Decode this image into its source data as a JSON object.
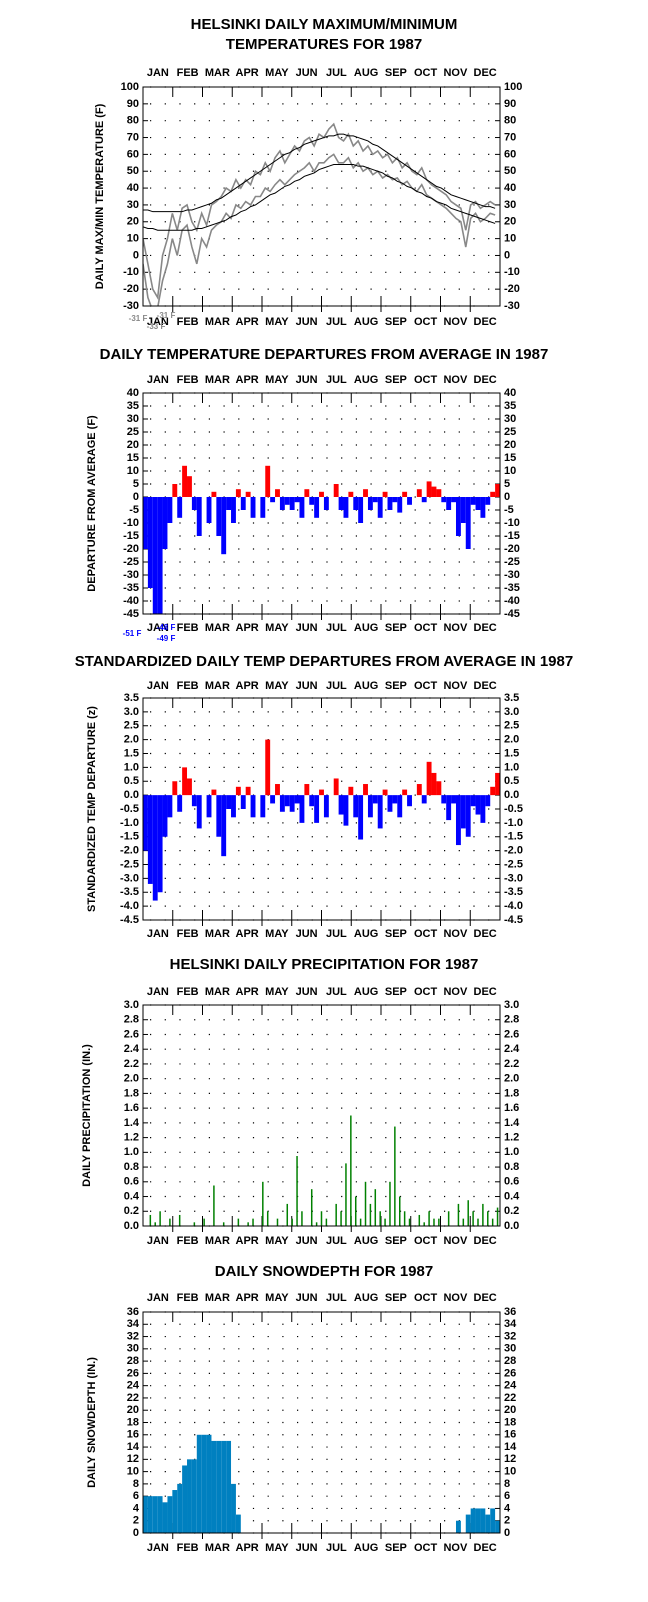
{
  "chart_data": [
    {
      "type": "line",
      "title": [
        "HELSINKI DAILY MAXIMUM/MINIMUM",
        "TEMPERATURES FOR 1987"
      ],
      "ylabel": "DAILY MAX/MIN TEMPERATURE (F)",
      "categories": [
        "JAN",
        "FEB",
        "MAR",
        "APR",
        "MAY",
        "JUN",
        "JUL",
        "AUG",
        "SEP",
        "OCT",
        "NOV",
        "DEC"
      ],
      "xlim": [
        1,
        366
      ],
      "x": [
        1,
        6,
        11,
        16,
        21,
        26,
        31,
        36,
        41,
        46,
        51,
        56,
        61,
        66,
        71,
        76,
        81,
        86,
        91,
        96,
        101,
        106,
        111,
        116,
        121,
        126,
        131,
        136,
        141,
        146,
        151,
        156,
        161,
        166,
        171,
        176,
        181,
        186,
        191,
        196,
        201,
        206,
        211,
        216,
        221,
        226,
        231,
        236,
        241,
        246,
        251,
        256,
        261,
        266,
        271,
        276,
        281,
        286,
        291,
        296,
        301,
        306,
        311,
        316,
        321,
        326,
        331,
        336,
        341,
        346,
        351,
        356,
        361
      ],
      "series": [
        {
          "color": "#888888",
          "values": [
            10,
            -5,
            -20,
            -25,
            0,
            10,
            25,
            15,
            28,
            30,
            20,
            15,
            25,
            18,
            30,
            32,
            35,
            40,
            38,
            45,
            40,
            45,
            42,
            50,
            48,
            55,
            50,
            58,
            62,
            55,
            60,
            65,
            62,
            68,
            70,
            65,
            72,
            70,
            75,
            78,
            70,
            68,
            72,
            65,
            68,
            62,
            65,
            60,
            62,
            58,
            60,
            55,
            58,
            52,
            55,
            50,
            48,
            52,
            45,
            42,
            40,
            38,
            36,
            32,
            30,
            28,
            15,
            30,
            32,
            28,
            30,
            32,
            30
          ]
        },
        {
          "color": "#888888",
          "values": [
            -5,
            -25,
            -33,
            -31,
            -15,
            -5,
            10,
            0,
            15,
            18,
            5,
            -5,
            10,
            5,
            15,
            18,
            20,
            25,
            22,
            30,
            28,
            32,
            30,
            35,
            35,
            40,
            38,
            42,
            45,
            42,
            45,
            48,
            50,
            52,
            55,
            50,
            55,
            55,
            58,
            60,
            55,
            55,
            58,
            52,
            55,
            50,
            52,
            48,
            50,
            46,
            48,
            45,
            46,
            42,
            44,
            40,
            38,
            42,
            36,
            34,
            32,
            30,
            28,
            25,
            22,
            20,
            5,
            22,
            25,
            20,
            22,
            25,
            24
          ]
        },
        {
          "color": "#000000",
          "values": [
            27,
            27,
            26,
            26,
            26,
            26,
            26,
            26,
            26,
            27,
            27,
            28,
            29,
            30,
            31,
            33,
            34,
            36,
            38,
            40,
            42,
            44,
            46,
            48,
            50,
            52,
            54,
            56,
            58,
            60,
            61,
            63,
            64,
            66,
            67,
            68,
            69,
            70,
            71,
            71,
            72,
            72,
            71,
            71,
            70,
            69,
            68,
            66,
            65,
            63,
            61,
            59,
            57,
            55,
            53,
            51,
            49,
            47,
            45,
            43,
            41,
            40,
            38,
            36,
            35,
            34,
            33,
            32,
            31,
            30,
            29,
            29,
            28
          ]
        },
        {
          "color": "#000000",
          "values": [
            17,
            16,
            16,
            15,
            15,
            15,
            15,
            15,
            15,
            15,
            15,
            16,
            16,
            17,
            18,
            19,
            20,
            21,
            23,
            24,
            26,
            27,
            29,
            30,
            32,
            34,
            36,
            37,
            39,
            41,
            42,
            44,
            45,
            47,
            48,
            49,
            51,
            52,
            53,
            54,
            54,
            54,
            54,
            54,
            53,
            53,
            52,
            51,
            50,
            49,
            47,
            46,
            44,
            43,
            41,
            40,
            38,
            37,
            35,
            34,
            32,
            31,
            30,
            28,
            27,
            26,
            25,
            24,
            23,
            22,
            21,
            20,
            19
          ]
        }
      ],
      "ylim": [
        -30,
        100
      ],
      "yticks": [
        -30,
        -20,
        -10,
        0,
        10,
        20,
        30,
        40,
        50,
        60,
        70,
        80,
        90,
        100
      ],
      "grid": true,
      "annotations": [
        "-31 F",
        "-33 F",
        "-31 F"
      ],
      "annotation_color": "#888888"
    },
    {
      "type": "bar",
      "title": "DAILY TEMPERATURE DEPARTURES FROM AVERAGE IN 1987",
      "ylabel": "DEPARTURE FROM AVERAGE (F)",
      "categories": [
        "JAN",
        "FEB",
        "MAR",
        "APR",
        "MAY",
        "JUN",
        "JUL",
        "AUG",
        "SEP",
        "OCT",
        "NOV",
        "DEC"
      ],
      "xlim": [
        1,
        366
      ],
      "x": [
        1,
        6,
        11,
        16,
        21,
        26,
        31,
        36,
        41,
        46,
        51,
        56,
        61,
        66,
        71,
        76,
        81,
        86,
        91,
        96,
        101,
        106,
        111,
        116,
        121,
        126,
        131,
        136,
        141,
        146,
        151,
        156,
        161,
        166,
        171,
        176,
        181,
        186,
        191,
        196,
        201,
        206,
        211,
        216,
        221,
        226,
        231,
        236,
        241,
        246,
        251,
        256,
        261,
        266,
        271,
        276,
        281,
        286,
        291,
        296,
        301,
        306,
        311,
        316,
        321,
        326,
        331,
        336,
        341,
        346,
        351,
        356,
        361
      ],
      "values": [
        -20,
        -35,
        -48,
        -45,
        -20,
        -10,
        5,
        -8,
        12,
        8,
        -5,
        -15,
        0,
        -10,
        2,
        -15,
        -22,
        -5,
        -10,
        3,
        -5,
        2,
        -8,
        0,
        -8,
        12,
        -2,
        3,
        -5,
        -3,
        -5,
        -2,
        -8,
        3,
        -3,
        -8,
        2,
        -5,
        0,
        5,
        -5,
        -8,
        2,
        -5,
        -10,
        3,
        -5,
        -2,
        -8,
        2,
        -5,
        -2,
        -6,
        2,
        -3,
        0,
        3,
        -2,
        6,
        4,
        3,
        -2,
        -5,
        -2,
        -15,
        -10,
        -20,
        -3,
        -5,
        -8,
        -3,
        2,
        5
      ],
      "pos_color": "#ff0000",
      "neg_color": "#0000ff",
      "ylim": [
        -45,
        40
      ],
      "yticks": [
        -45,
        -40,
        -35,
        -30,
        -25,
        -20,
        -15,
        -10,
        -5,
        0,
        5,
        10,
        15,
        20,
        25,
        30,
        35,
        40
      ],
      "grid": true,
      "annotations": [
        "-51 F",
        "-48 F",
        "-49 F"
      ],
      "annotation_color": "#0000ff"
    },
    {
      "type": "bar",
      "title": "STANDARDIZED DAILY TEMP DEPARTURES FROM AVERAGE IN 1987",
      "ylabel": "STANDARDIZED TEMP DEPARTURE (z)",
      "categories": [
        "JAN",
        "FEB",
        "MAR",
        "APR",
        "MAY",
        "JUN",
        "JUL",
        "AUG",
        "SEP",
        "OCT",
        "NOV",
        "DEC"
      ],
      "xlim": [
        1,
        366
      ],
      "x": [
        1,
        6,
        11,
        16,
        21,
        26,
        31,
        36,
        41,
        46,
        51,
        56,
        61,
        66,
        71,
        76,
        81,
        86,
        91,
        96,
        101,
        106,
        111,
        116,
        121,
        126,
        131,
        136,
        141,
        146,
        151,
        156,
        161,
        166,
        171,
        176,
        181,
        186,
        191,
        196,
        201,
        206,
        211,
        216,
        221,
        226,
        231,
        236,
        241,
        246,
        251,
        256,
        261,
        266,
        271,
        276,
        281,
        286,
        291,
        296,
        301,
        306,
        311,
        316,
        321,
        326,
        331,
        336,
        341,
        346,
        351,
        356,
        361
      ],
      "values": [
        -2.0,
        -3.2,
        -3.8,
        -3.5,
        -1.5,
        -0.8,
        0.5,
        -0.6,
        1.0,
        0.6,
        -0.4,
        -1.2,
        0,
        -0.8,
        0.2,
        -1.5,
        -2.2,
        -0.5,
        -0.8,
        0.3,
        -0.5,
        0.3,
        -0.8,
        0,
        -0.8,
        2.0,
        -0.3,
        0.4,
        -0.6,
        -0.4,
        -0.6,
        -0.3,
        -1.0,
        0.4,
        -0.4,
        -1.0,
        0.2,
        -0.8,
        0,
        0.6,
        -0.7,
        -1.1,
        0.3,
        -0.8,
        -1.6,
        0.4,
        -0.8,
        -0.3,
        -1.2,
        0.2,
        -0.6,
        -0.3,
        -0.8,
        0.2,
        -0.4,
        0,
        0.4,
        -0.3,
        1.2,
        0.8,
        0.5,
        -0.3,
        -0.9,
        -0.3,
        -1.8,
        -1.2,
        -1.5,
        -0.4,
        -0.7,
        -1.0,
        -0.4,
        0.3,
        0.8
      ],
      "pos_color": "#ff0000",
      "neg_color": "#0000ff",
      "ylim": [
        -4.5,
        3.5
      ],
      "yticks": [
        -4.5,
        {
          "value": -4,
          "label": "-4.0"
        },
        -3.5,
        {
          "value": -3,
          "label": "-3.0"
        },
        -2.5,
        {
          "value": -2,
          "label": "-2.0"
        },
        -1.5,
        {
          "value": -1,
          "label": "-1.0"
        },
        -0.5,
        {
          "value": 0,
          "label": "0.0"
        },
        0.5,
        {
          "value": 1,
          "label": "1.0"
        },
        1.5,
        {
          "value": 2,
          "label": "2.0"
        },
        2.5,
        {
          "value": 3,
          "label": "3.0"
        },
        3.5
      ],
      "grid": true
    },
    {
      "type": "stem",
      "title": "HELSINKI DAILY PRECIPITATION FOR 1987",
      "ylabel": "DAILY PRECIPITATION (IN.)",
      "categories": [
        "JAN",
        "FEB",
        "MAR",
        "APR",
        "MAY",
        "JUN",
        "JUL",
        "AUG",
        "SEP",
        "OCT",
        "NOV",
        "DEC"
      ],
      "xlim": [
        1,
        366
      ],
      "x": [
        1,
        6,
        11,
        16,
        21,
        26,
        31,
        36,
        41,
        46,
        51,
        56,
        61,
        66,
        71,
        76,
        81,
        86,
        91,
        96,
        101,
        106,
        111,
        116,
        121,
        126,
        131,
        136,
        141,
        146,
        151,
        156,
        161,
        166,
        171,
        176,
        181,
        186,
        191,
        196,
        201,
        206,
        211,
        216,
        221,
        226,
        231,
        236,
        241,
        246,
        251,
        256,
        261,
        266,
        271,
        276,
        281,
        286,
        291,
        296,
        301,
        306,
        311,
        316,
        321,
        326,
        331,
        336,
        341,
        346,
        351,
        356,
        361
      ],
      "values": [
        0,
        0.15,
        0.05,
        0.2,
        0,
        0.1,
        0,
        0.15,
        0,
        0,
        0.05,
        0,
        0.1,
        0,
        0.55,
        0,
        0.05,
        0,
        0,
        0.1,
        0,
        0.05,
        0.1,
        0,
        0.6,
        0.2,
        0,
        0.1,
        0,
        0.3,
        0.1,
        0.95,
        0.2,
        0,
        0.5,
        0.05,
        0.2,
        0.1,
        0,
        0.3,
        0.2,
        0.85,
        1.5,
        0.4,
        0.1,
        0.6,
        0.3,
        0.5,
        0.2,
        0.1,
        0.6,
        1.35,
        0.4,
        0.2,
        0.1,
        0,
        0.15,
        0.05,
        0.2,
        0.1,
        0.1,
        0,
        0.2,
        0,
        0.3,
        0.1,
        0.35,
        0.2,
        0.1,
        0.3,
        0.2,
        0.1,
        0.25
      ],
      "color": "#008000",
      "ylim": [
        0,
        3
      ],
      "yticks": [
        {
          "value": 0,
          "label": "0.0"
        },
        0.2,
        0.4,
        0.6,
        0.8,
        {
          "value": 1,
          "label": "1.0"
        },
        1.2,
        1.4,
        1.6,
        1.8,
        {
          "value": 2,
          "label": "2.0"
        },
        2.2,
        2.4,
        2.6,
        2.8,
        {
          "value": 3,
          "label": "3.0"
        }
      ],
      "grid": true
    },
    {
      "type": "bar",
      "title": "DAILY SNOWDEPTH FOR 1987",
      "ylabel": "DAILY SNOWDEPTH (IN.)",
      "categories": [
        "JAN",
        "FEB",
        "MAR",
        "APR",
        "MAY",
        "JUN",
        "JUL",
        "AUG",
        "SEP",
        "OCT",
        "NOV",
        "DEC"
      ],
      "xlim": [
        1,
        366
      ],
      "x": [
        1,
        6,
        11,
        16,
        21,
        26,
        31,
        36,
        41,
        46,
        51,
        56,
        61,
        66,
        71,
        76,
        81,
        86,
        91,
        96,
        101,
        106,
        111,
        116,
        121,
        126,
        131,
        136,
        141,
        146,
        151,
        156,
        161,
        166,
        171,
        176,
        181,
        186,
        191,
        196,
        201,
        206,
        211,
        216,
        221,
        226,
        231,
        236,
        241,
        246,
        251,
        256,
        261,
        266,
        271,
        276,
        281,
        286,
        291,
        296,
        301,
        306,
        311,
        316,
        321,
        326,
        331,
        336,
        341,
        346,
        351,
        356,
        361
      ],
      "values": [
        6,
        6,
        6,
        6,
        5,
        6,
        7,
        8,
        11,
        12,
        12,
        16,
        16,
        16,
        15,
        15,
        15,
        15,
        8,
        3,
        0,
        0,
        0,
        0,
        0,
        0,
        0,
        0,
        0,
        0,
        0,
        0,
        0,
        0,
        0,
        0,
        0,
        0,
        0,
        0,
        0,
        0,
        0,
        0,
        0,
        0,
        0,
        0,
        0,
        0,
        0,
        0,
        0,
        0,
        0,
        0,
        0,
        0,
        0,
        0,
        0,
        0,
        0,
        0,
        2,
        0,
        3,
        4,
        4,
        4,
        3,
        4,
        2
      ],
      "color": "#0080c0",
      "ylim": [
        0,
        36
      ],
      "yticks": [
        0,
        2,
        4,
        6,
        8,
        10,
        12,
        14,
        16,
        18,
        20,
        22,
        24,
        26,
        28,
        30,
        32,
        34,
        36
      ],
      "grid": true
    }
  ]
}
